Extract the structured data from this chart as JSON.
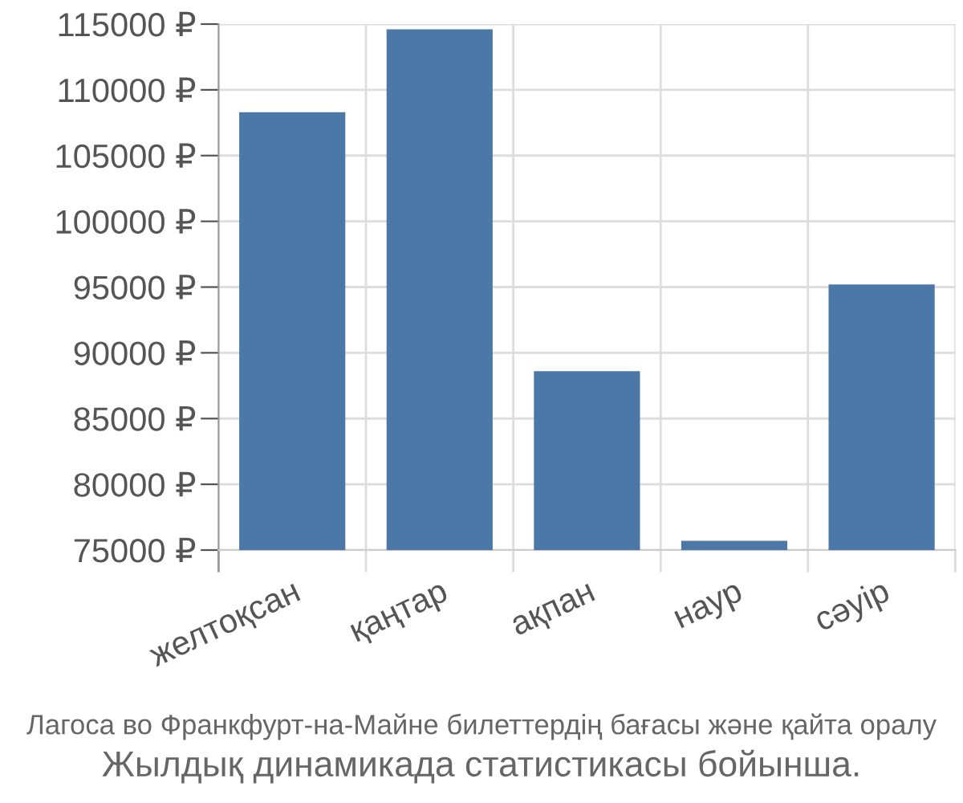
{
  "chart_data": {
    "type": "bar",
    "categories": [
      "желтоқсан",
      "қаңтар",
      "ақпан",
      "наур",
      "сәуір"
    ],
    "values": [
      108300,
      114600,
      88600,
      75700,
      95200
    ],
    "color": "#4c78a8",
    "ylim": [
      75000,
      115000
    ],
    "yticks": [
      {
        "value": 75000,
        "label": "75000 ₽"
      },
      {
        "value": 80000,
        "label": "80000 ₽"
      },
      {
        "value": 85000,
        "label": "85000 ₽"
      },
      {
        "value": 90000,
        "label": "90000 ₽"
      },
      {
        "value": 95000,
        "label": "95000 ₽"
      },
      {
        "value": 100000,
        "label": "100000 ₽"
      },
      {
        "value": 105000,
        "label": "105000 ₽"
      },
      {
        "value": 110000,
        "label": "110000 ₽"
      },
      {
        "value": 115000,
        "label": "115000 ₽"
      }
    ],
    "grid": true,
    "annotations": [
      "Лагоса во Франкфурт-на-Майне билеттердің бағасы және қайта оралу",
      "Жылдық динамикада статистикасы бойынша."
    ]
  }
}
